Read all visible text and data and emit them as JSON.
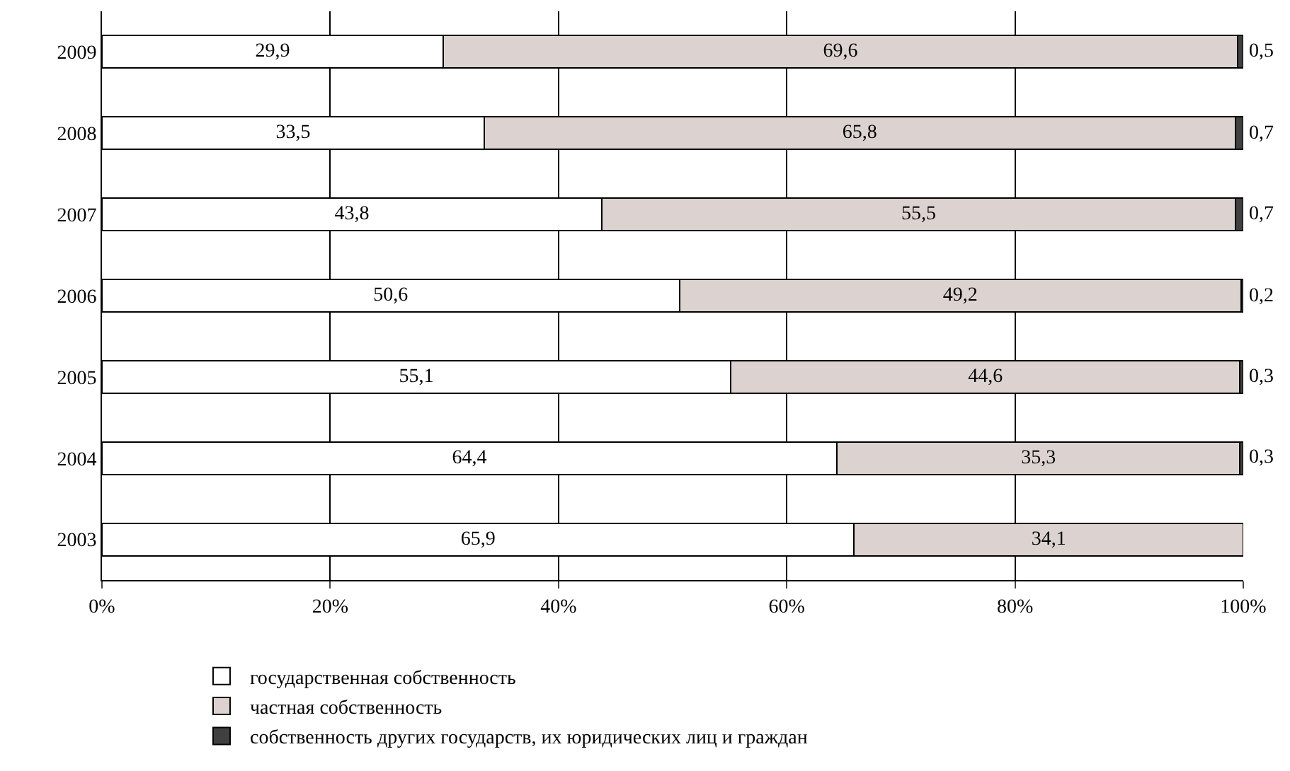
{
  "chart_data": {
    "type": "bar",
    "orientation": "horizontal",
    "stacked": true,
    "categories": [
      "2009",
      "2008",
      "2007",
      "2006",
      "2005",
      "2004",
      "2003"
    ],
    "series": [
      {
        "name": "государственная собственность",
        "color": "#ffffff",
        "values": [
          29.9,
          33.5,
          43.8,
          50.6,
          55.1,
          64.4,
          65.9
        ],
        "value_labels": [
          "29,9",
          "33,5",
          "43,8",
          "50,6",
          "55,1",
          "64,4",
          "65,9"
        ]
      },
      {
        "name": "частная собственность",
        "color": "#dcd3d0",
        "values": [
          69.6,
          65.8,
          55.5,
          49.2,
          44.6,
          35.3,
          34.1
        ],
        "value_labels": [
          "69,6",
          "65,8",
          "55,5",
          "49,2",
          "44,6",
          "35,3",
          "34,1"
        ]
      },
      {
        "name": "собственность других государств, их юридических лиц и граждан",
        "color": "#404040",
        "values": [
          0.5,
          0.7,
          0.7,
          0.2,
          0.3,
          0.3,
          null
        ],
        "value_labels": [
          "0,5",
          "0,7",
          "0,7",
          "0,2",
          "0,3",
          "0,3",
          null
        ]
      }
    ],
    "xlim": [
      0,
      100
    ],
    "xticks": [
      {
        "value": 0,
        "label": "0%"
      },
      {
        "value": 20,
        "label": "20%"
      },
      {
        "value": 40,
        "label": "40%"
      },
      {
        "value": 60,
        "label": "60%"
      },
      {
        "value": 80,
        "label": "80%"
      },
      {
        "value": 100,
        "label": "100%"
      }
    ],
    "grid": "x",
    "legend": "bottom left"
  }
}
